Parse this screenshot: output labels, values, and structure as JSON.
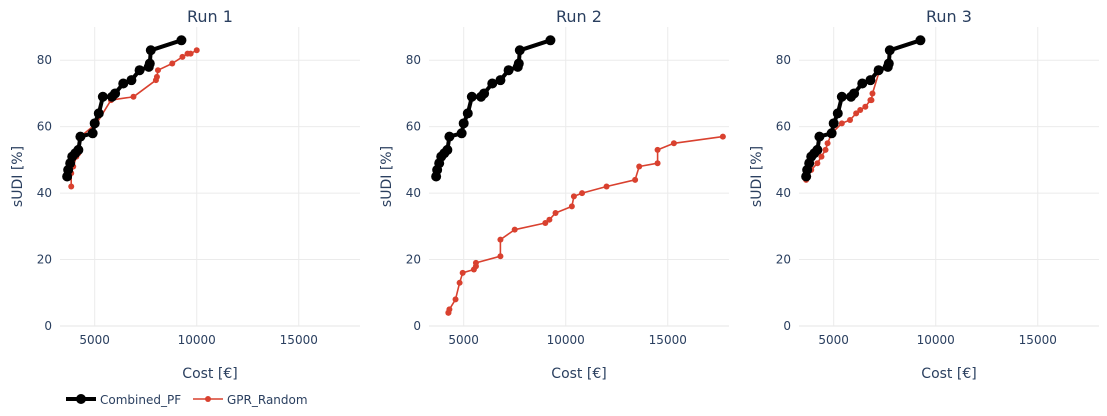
{
  "legend": {
    "position": "bottom-left",
    "entries": [
      {
        "name": "Combined_PF",
        "color": "#000000"
      },
      {
        "name": "GPR_Random",
        "color": "#d9412f"
      }
    ]
  },
  "chart_data": [
    {
      "type": "line",
      "title": "Run 1",
      "xlabel": "Cost [€]",
      "ylabel": "sUDI [%]",
      "xlim": [
        3300,
        18000
      ],
      "ylim": [
        0,
        90
      ],
      "xticks": [
        5000,
        10000,
        15000
      ],
      "yticks": [
        0,
        20,
        40,
        60,
        80
      ],
      "grid": true,
      "series": [
        {
          "name": "Combined_PF",
          "color": "#000000",
          "x": [
            3650,
            3700,
            3800,
            3900,
            4050,
            4200,
            4300,
            4900,
            5000,
            5200,
            5400,
            5850,
            6000,
            6400,
            6800,
            7200,
            7650,
            7700,
            7750,
            9250
          ],
          "y": [
            45,
            47,
            49,
            51,
            52,
            53,
            57,
            58,
            61,
            64,
            69,
            69,
            70,
            73,
            74,
            77,
            78,
            79,
            83,
            86
          ]
        },
        {
          "name": "GPR_Random",
          "color": "#d9412f",
          "x": [
            3850,
            3850,
            3950,
            4100,
            4200,
            4300,
            5100,
            5800,
            6900,
            8000,
            8050,
            8100,
            8800,
            9300,
            9550,
            9700,
            10000
          ],
          "y": [
            42,
            46,
            48,
            51,
            52,
            57,
            61,
            68,
            69,
            74,
            75,
            77,
            79,
            81,
            82,
            82,
            83
          ]
        }
      ]
    },
    {
      "type": "line",
      "title": "Run 2",
      "xlabel": "Cost [€]",
      "ylabel": "sUDI [%]",
      "xlim": [
        3300,
        18000
      ],
      "ylim": [
        0,
        90
      ],
      "xticks": [
        5000,
        10000,
        15000
      ],
      "yticks": [
        0,
        20,
        40,
        60,
        80
      ],
      "grid": true,
      "series": [
        {
          "name": "Combined_PF",
          "color": "#000000",
          "x": [
            3650,
            3700,
            3800,
            3900,
            4050,
            4200,
            4300,
            4900,
            5000,
            5200,
            5400,
            5850,
            6000,
            6400,
            6800,
            7200,
            7650,
            7700,
            7750,
            9250
          ],
          "y": [
            45,
            47,
            49,
            51,
            52,
            53,
            57,
            58,
            61,
            64,
            69,
            69,
            70,
            73,
            74,
            77,
            78,
            79,
            83,
            86
          ]
        },
        {
          "name": "GPR_Random",
          "color": "#d9412f",
          "x": [
            4250,
            4250,
            4300,
            4600,
            4800,
            4950,
            5500,
            5600,
            5600,
            6800,
            6800,
            7500,
            9000,
            9200,
            9500,
            10300,
            10400,
            10800,
            12000,
            13400,
            13600,
            14500,
            14500,
            15300,
            17700
          ],
          "y": [
            4,
            4,
            5,
            8,
            13,
            16,
            17,
            18,
            19,
            21,
            26,
            29,
            31,
            32,
            34,
            36,
            39,
            40,
            42,
            44,
            48,
            49,
            53,
            55,
            57
          ]
        }
      ]
    },
    {
      "type": "line",
      "title": "Run 3",
      "xlabel": "Cost [€]",
      "ylabel": "sUDI [%]",
      "xlim": [
        3300,
        18000
      ],
      "ylim": [
        0,
        90
      ],
      "xticks": [
        5000,
        10000,
        15000
      ],
      "yticks": [
        0,
        20,
        40,
        60,
        80
      ],
      "grid": true,
      "series": [
        {
          "name": "Combined_PF",
          "color": "#000000",
          "x": [
            3650,
            3700,
            3800,
            3900,
            4050,
            4200,
            4300,
            4900,
            5000,
            5200,
            5400,
            5850,
            6000,
            6400,
            6800,
            7200,
            7650,
            7700,
            7750,
            9250
          ],
          "y": [
            45,
            47,
            49,
            51,
            52,
            53,
            57,
            58,
            61,
            64,
            69,
            69,
            70,
            73,
            74,
            77,
            78,
            79,
            83,
            86
          ]
        },
        {
          "name": "GPR_Random",
          "color": "#d9412f",
          "x": [
            3650,
            3750,
            3900,
            4200,
            4400,
            4600,
            4700,
            4900,
            5400,
            5800,
            6100,
            6300,
            6550,
            6800,
            6850,
            6900,
            7250,
            7700,
            7750
          ],
          "y": [
            44,
            45,
            47,
            49,
            51,
            53,
            55,
            58,
            61,
            62,
            64,
            65,
            66,
            68,
            68,
            70,
            77,
            78,
            83
          ]
        }
      ]
    }
  ]
}
